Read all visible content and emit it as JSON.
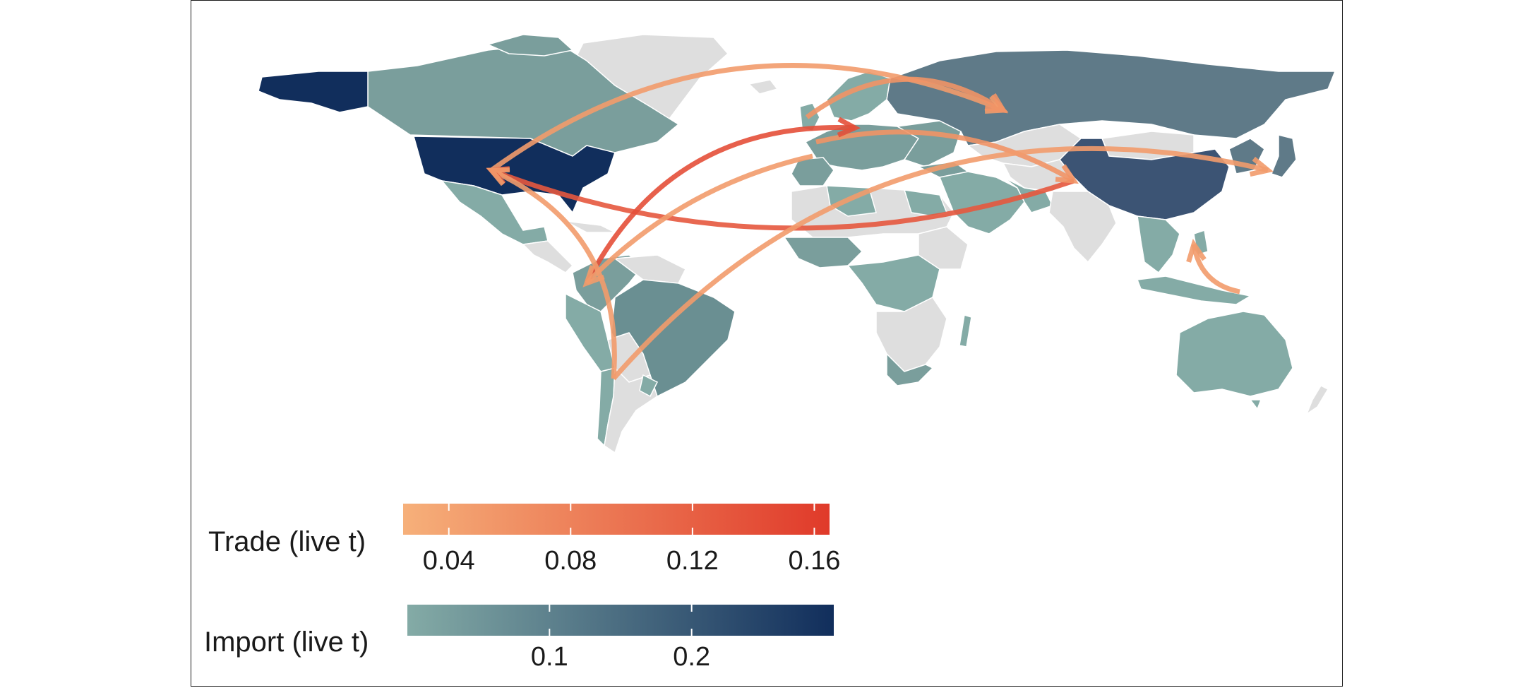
{
  "legends": {
    "trade": {
      "title": "Trade (live t)",
      "ticks": [
        "0.04",
        "0.08",
        "0.12",
        "0.16"
      ],
      "tick_values": [
        0.04,
        0.08,
        0.12,
        0.16
      ],
      "range": [
        0.025,
        0.165
      ],
      "colors": [
        "#f6b07a",
        "#e03a2a"
      ]
    },
    "import": {
      "title": "Import (live t)",
      "ticks": [
        "0.1",
        "0.2"
      ],
      "tick_values": [
        0.1,
        0.2
      ],
      "range": [
        0.0,
        0.3
      ],
      "colors": [
        "#84aba6",
        "#112e5c"
      ]
    }
  },
  "colors": {
    "no_data": "#dedede",
    "border": "#ffffff"
  },
  "flows": [
    {
      "from": "USA",
      "to": "Russia",
      "value": 0.05
    },
    {
      "from": "UK",
      "to": "Russia",
      "value": 0.06
    },
    {
      "from": "France",
      "to": "China",
      "value": 0.06
    },
    {
      "from": "China",
      "to": "USA",
      "value": 0.13
    },
    {
      "from": "Colombia",
      "to": "Germany",
      "value": 0.14
    },
    {
      "from": "Spain",
      "to": "Colombia",
      "value": 0.05
    },
    {
      "from": "Chile",
      "to": "USA",
      "value": 0.05
    },
    {
      "from": "Chile",
      "to": "Japan",
      "value": 0.05
    },
    {
      "from": "Indonesia",
      "to": "Philippines",
      "value": 0.05
    }
  ]
}
